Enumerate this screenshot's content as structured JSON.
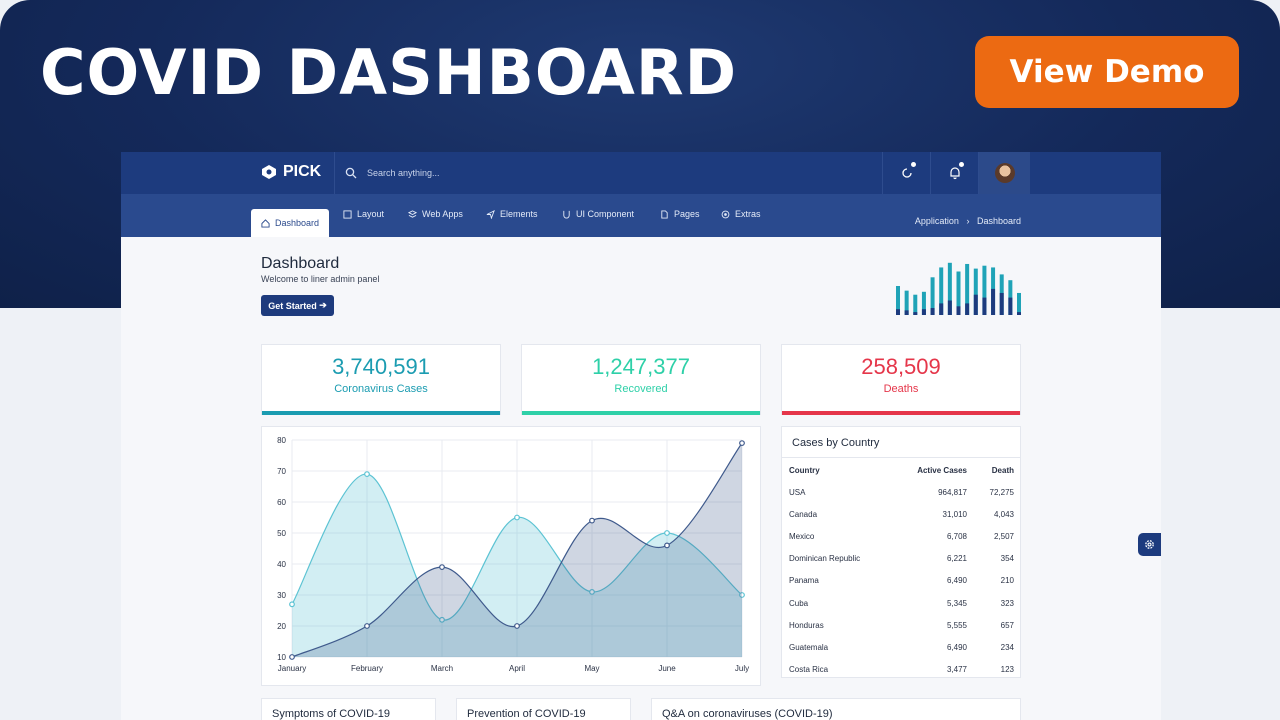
{
  "hero": {
    "title": "COVID DASHBOARD",
    "demo_label": "View Demo"
  },
  "topbar": {
    "brand": "PICK",
    "search_placeholder": "Search anything..."
  },
  "nav": {
    "items": [
      "Dashboard",
      "Layout",
      "Web Apps",
      "Elements",
      "UI Component",
      "Pages",
      "Extras"
    ],
    "active": "Dashboard",
    "breadcrumb": [
      "Application",
      "Dashboard"
    ]
  },
  "page": {
    "title": "Dashboard",
    "subtitle": "Welcome to liner admin panel",
    "button": "Get Started"
  },
  "stats": [
    {
      "value": "3,740,591",
      "label": "Coronavirus Cases",
      "color": "#1b9cb1"
    },
    {
      "value": "1,247,377",
      "label": "Recovered",
      "color": "#2ed0a8"
    },
    {
      "value": "258,509",
      "label": "Deaths",
      "color": "#e5364a"
    }
  ],
  "chart_data": {
    "type": "area",
    "categories": [
      "January",
      "February",
      "March",
      "April",
      "May",
      "June",
      "July"
    ],
    "series": [
      {
        "values": [
          27,
          69,
          22,
          55,
          31,
          50,
          30
        ],
        "color": "#5cc3d3"
      },
      {
        "values": [
          10,
          20,
          39,
          20,
          54,
          46,
          79
        ],
        "color": "#3f5a8c"
      }
    ],
    "yticks": [
      10,
      20,
      30,
      40,
      50,
      60,
      70,
      80
    ],
    "ylim": [
      10,
      80
    ],
    "grid": true
  },
  "sparkline": {
    "values": [
      0.5,
      0.42,
      0.35,
      0.4,
      0.65,
      0.82,
      0.9,
      0.75,
      0.88,
      0.8,
      0.85,
      0.82,
      0.7,
      0.6,
      0.38
    ],
    "dark_values": [
      0.1,
      0.08,
      0.05,
      0.1,
      0.12,
      0.2,
      0.25,
      0.15,
      0.2,
      0.35,
      0.3,
      0.45,
      0.38,
      0.3,
      0.05
    ]
  },
  "table": {
    "title": "Cases by Country",
    "columns": [
      "Country",
      "Active Cases",
      "Death"
    ],
    "rows": [
      [
        "USA",
        "964,817",
        "72,275"
      ],
      [
        "Canada",
        "31,010",
        "4,043"
      ],
      [
        "Mexico",
        "6,708",
        "2,507"
      ],
      [
        "Dominican Republic",
        "6,221",
        "354"
      ],
      [
        "Panama",
        "6,490",
        "210"
      ],
      [
        "Cuba",
        "5,345",
        "323"
      ],
      [
        "Honduras",
        "5,555",
        "657"
      ],
      [
        "Guatemala",
        "6,490",
        "234"
      ],
      [
        "Costa Rica",
        "3,477",
        "123"
      ]
    ]
  },
  "bottom_cards": [
    "Symptoms of COVID-19",
    "Prevention of COVID-19",
    "Q&A on coronaviruses (COVID-19)"
  ]
}
